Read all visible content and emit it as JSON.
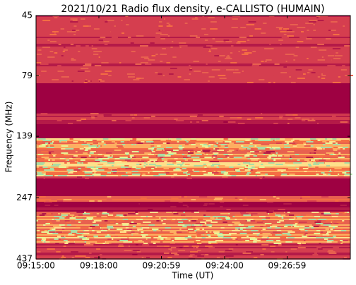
{
  "chart_data": {
    "type": "spectrogram",
    "title": "2021/10/21  Radio flux density, e-CALLISTO (HUMAIN)",
    "x_label": "Time (UT)",
    "y_label": "Frequency (MHz)",
    "xlim": [
      33300,
      34200
    ],
    "xticks": [
      {
        "value": 33300,
        "label": "09:15:00"
      },
      {
        "value": 33480,
        "label": "09:18:00"
      },
      {
        "value": 33659,
        "label": "09:20:59"
      },
      {
        "value": 33840,
        "label": "09:24:00"
      },
      {
        "value": 34019,
        "label": "09:26:59"
      }
    ],
    "ylim": [
      45,
      437
    ],
    "yticks": [
      45,
      79,
      139,
      247,
      437
    ],
    "y_log": true,
    "y_inverted": true
  }
}
